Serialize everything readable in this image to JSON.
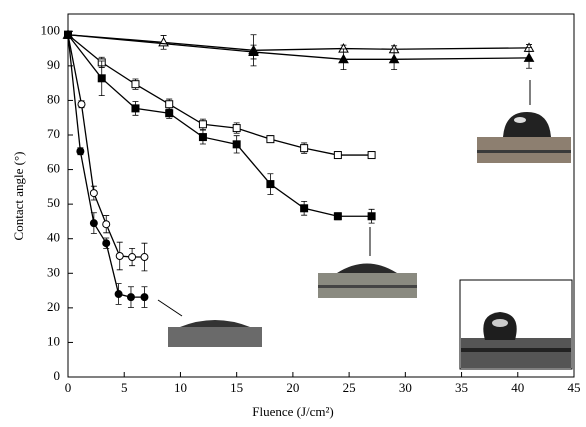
{
  "chart_data": {
    "type": "line",
    "xlabel": "Fluence (J/cm²)",
    "ylabel": "Contact angle (°)",
    "xlim": [
      0,
      45
    ],
    "xticks": [
      0,
      5,
      10,
      15,
      20,
      25,
      30,
      35,
      40,
      45
    ],
    "ylim": [
      0,
      105
    ],
    "yticks": [
      0,
      10,
      20,
      30,
      40,
      50,
      60,
      70,
      80,
      90,
      100
    ],
    "series": [
      {
        "color": "#000000",
        "marker": "triangle",
        "filled": false,
        "x": [
          0,
          8.5,
          16.5,
          24.5,
          29,
          41
        ],
        "values": [
          99,
          96.8,
          94.5,
          95,
          94.8,
          95.2
        ],
        "errors": [
          0.5,
          2,
          4.5,
          1,
          1,
          1
        ]
      },
      {
        "color": "#000000",
        "marker": "triangle",
        "filled": true,
        "x": [
          0,
          16.5,
          24.5,
          29,
          41
        ],
        "values": [
          99,
          94,
          91.9,
          91.9,
          92.3
        ],
        "errors": [
          0.5,
          2,
          3,
          3,
          3
        ]
      },
      {
        "color": "#000000",
        "marker": "square",
        "filled": false,
        "x": [
          0,
          3,
          6,
          9,
          12,
          15,
          18,
          21,
          24,
          27
        ],
        "values": [
          99,
          91,
          84.7,
          78.9,
          73.1,
          72,
          68.8,
          66.2,
          64.2,
          64.2
        ],
        "errors": [
          0.5,
          1.5,
          1.5,
          1.5,
          1.5,
          1.5,
          1,
          1.5,
          1,
          1
        ]
      },
      {
        "color": "#000000",
        "marker": "square",
        "filled": true,
        "x": [
          0,
          3,
          6,
          9,
          12,
          15,
          18,
          21,
          24,
          27
        ],
        "values": [
          99,
          86.4,
          77.7,
          76.3,
          69.4,
          67.3,
          55.8,
          48.8,
          46.5,
          46.5
        ],
        "errors": [
          0.5,
          5,
          2,
          1.5,
          2,
          2.5,
          3,
          2,
          1,
          2
        ]
      },
      {
        "color": "#000000",
        "marker": "circle",
        "filled": false,
        "x": [
          0,
          1.2,
          2.3,
          3.4,
          4.6,
          5.7,
          6.8
        ],
        "values": [
          99,
          78.9,
          53.2,
          44.2,
          35,
          34.7,
          34.7
        ],
        "errors": [
          0.5,
          1,
          2,
          2.5,
          4,
          2.5,
          4
        ]
      },
      {
        "color": "#000000",
        "marker": "circle",
        "filled": true,
        "x": [
          0,
          1.1,
          2.3,
          3.4,
          4.5,
          5.6,
          6.8
        ],
        "values": [
          99,
          65.3,
          44.5,
          38.7,
          24,
          23.1,
          23.1
        ],
        "errors": [
          0.5,
          1,
          3,
          1.5,
          3,
          3,
          3
        ]
      }
    ]
  }
}
